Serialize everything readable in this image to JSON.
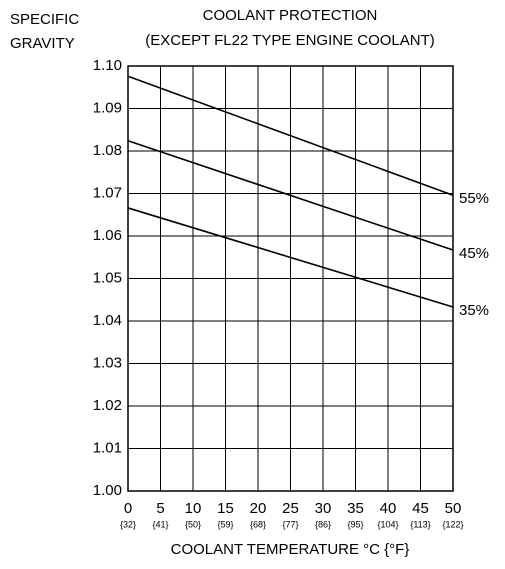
{
  "chart_data": {
    "type": "line",
    "title": "COOLANT PROTECTION",
    "subtitle": "(EXCEPT FL22 TYPE ENGINE COOLANT)",
    "ylabel": [
      "SPECIFIC",
      "GRAVITY"
    ],
    "xlabel": "COOLANT TEMPERATURE  °C {°F}",
    "x": [
      0,
      50
    ],
    "series": [
      {
        "name": "55%",
        "color": "#000000",
        "values": [
          1.0976,
          1.0696
        ]
      },
      {
        "name": "45%",
        "color": "#000000",
        "values": [
          1.0824,
          1.0567
        ]
      },
      {
        "name": "35%",
        "color": "#000000",
        "values": [
          1.0666,
          1.0433
        ]
      }
    ],
    "xlim": [
      0,
      50
    ],
    "xticks": [
      0,
      5,
      10,
      15,
      20,
      25,
      30,
      35,
      40,
      45,
      50
    ],
    "xtick_secondary_labels": [
      "{32}",
      "{41}",
      "{50}",
      "{59}",
      "{68}",
      "{77}",
      "{86}",
      "{95}",
      "{104}",
      "{113}",
      "{122}"
    ],
    "ylim": [
      1.0,
      1.1
    ],
    "yticks": [
      {
        "value": 1.0,
        "label": "1.00"
      },
      1.01,
      1.02,
      1.03,
      1.04,
      1.05,
      1.06,
      1.07,
      1.08,
      1.09,
      {
        "value": 1.1,
        "label": "1.10"
      }
    ],
    "grid": true
  }
}
